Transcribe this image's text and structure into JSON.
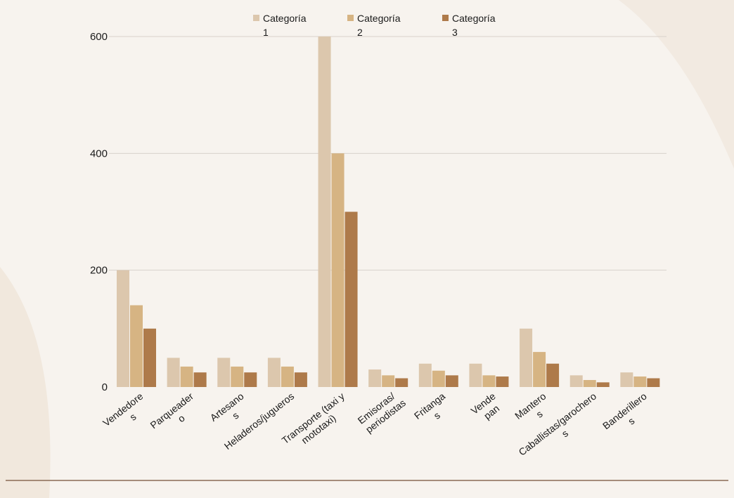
{
  "chart_data": {
    "type": "bar",
    "categories": [
      [
        "Vendedore",
        "s"
      ],
      [
        "Parqueader",
        "o"
      ],
      [
        "Artesano",
        "s"
      ],
      [
        "Heladeros/jugueros"
      ],
      [
        "Transporte (taxi y",
        "mototaxi)"
      ],
      [
        "Emisoras/",
        "periodistas"
      ],
      [
        "Fritanga",
        "s"
      ],
      [
        "Vende",
        "pan"
      ],
      [
        "Mantero",
        "s"
      ],
      [
        "Caballistas/garochero",
        "s"
      ],
      [
        "Banderillero",
        "s"
      ]
    ],
    "series": [
      {
        "name": [
          "Categoría",
          "1"
        ],
        "color": "#dcc7ad",
        "values": [
          200,
          50,
          50,
          50,
          600,
          30,
          40,
          40,
          100,
          20,
          25
        ]
      },
      {
        "name": [
          "Categoría",
          "2"
        ],
        "color": "#d6b483",
        "values": [
          140,
          35,
          35,
          35,
          400,
          20,
          28,
          20,
          60,
          12,
          18
        ]
      },
      {
        "name": [
          "Categoría",
          "3"
        ],
        "color": "#ae7a4a",
        "values": [
          100,
          25,
          25,
          25,
          300,
          15,
          20,
          18,
          40,
          8,
          15
        ]
      }
    ],
    "yticks": [
      "0",
      "200",
      "400",
      "600"
    ],
    "ylim": [
      0,
      600
    ],
    "grid": true,
    "legend_position": "top"
  }
}
